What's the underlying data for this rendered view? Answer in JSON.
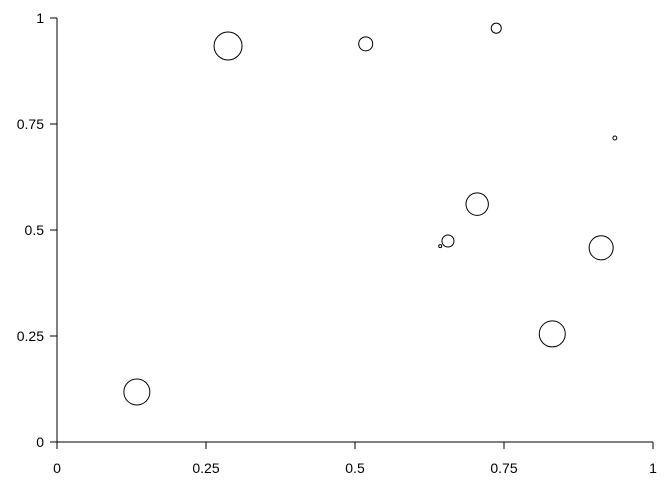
{
  "chart_data": {
    "type": "scatter",
    "variant": "bubble",
    "title": "",
    "xlabel": "",
    "ylabel": "",
    "xlim": [
      0,
      1
    ],
    "ylim": [
      0,
      1
    ],
    "grid": false,
    "marker": "open-circle",
    "marker_color": "#000000",
    "x_ticks": [
      "0",
      "0.25",
      "0.5",
      "0.75",
      "1"
    ],
    "y_ticks": [
      "0",
      "0.25",
      "0.5",
      "0.75",
      "1"
    ],
    "points": [
      {
        "x": 0.134,
        "y": 0.118,
        "size": 0.93
      },
      {
        "x": 0.287,
        "y": 0.934,
        "size": 1.0
      },
      {
        "x": 0.518,
        "y": 0.939,
        "size": 0.5
      },
      {
        "x": 0.737,
        "y": 0.976,
        "size": 0.36
      },
      {
        "x": 0.936,
        "y": 0.717,
        "size": 0.14
      },
      {
        "x": 0.705,
        "y": 0.561,
        "size": 0.8
      },
      {
        "x": 0.656,
        "y": 0.474,
        "size": 0.43
      },
      {
        "x": 0.643,
        "y": 0.462,
        "size": 0.1
      },
      {
        "x": 0.913,
        "y": 0.458,
        "size": 0.86
      },
      {
        "x": 0.831,
        "y": 0.255,
        "size": 0.93
      }
    ]
  }
}
